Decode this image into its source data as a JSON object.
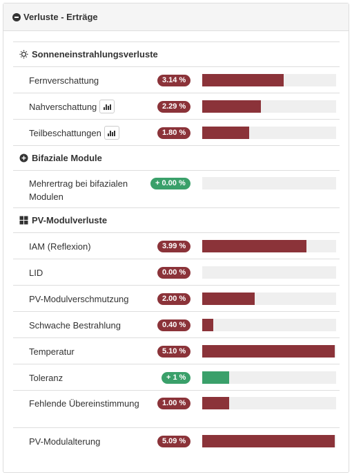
{
  "panel": {
    "title": "Verluste - Erträge"
  },
  "colors": {
    "loss": "#8b3339",
    "gain": "#3aa06a",
    "track": "#efefef"
  },
  "sections": [
    {
      "title": "Sonneneinstrahlungsverluste",
      "icon": "sun-icon",
      "rows": [
        {
          "label": "Fernverschattung",
          "value": "3.14 %",
          "type": "loss",
          "fill_pct": 61,
          "chart_button": false
        },
        {
          "label": "Nahverschattung",
          "value": "2.29 %",
          "type": "loss",
          "fill_pct": 44,
          "chart_button": true
        },
        {
          "label": "Teilbeschattungen",
          "value": "1.80 %",
          "type": "loss",
          "fill_pct": 35,
          "chart_button": true
        }
      ]
    },
    {
      "title": "Bifaziale Module",
      "icon": "plus-circle-icon",
      "rows": [
        {
          "label": "Mehrertrag bei bifazialen Modulen",
          "value": "+ 0.00 %",
          "type": "gain",
          "fill_pct": 0,
          "chart_button": false,
          "tall": true
        }
      ]
    },
    {
      "title": "PV-Modulverluste",
      "icon": "grid-icon",
      "rows": [
        {
          "label": "IAM (Reflexion)",
          "value": "3.99 %",
          "type": "loss",
          "fill_pct": 78,
          "chart_button": false
        },
        {
          "label": "LID",
          "value": "0.00 %",
          "type": "loss",
          "fill_pct": 0,
          "chart_button": false
        },
        {
          "label": "PV-Modulverschmutzung",
          "value": "2.00 %",
          "type": "loss",
          "fill_pct": 39,
          "chart_button": false
        },
        {
          "label": "Schwache Bestrahlung",
          "value": "0.40 %",
          "type": "loss",
          "fill_pct": 8,
          "chart_button": false
        },
        {
          "label": "Temperatur",
          "value": "5.10 %",
          "type": "loss",
          "fill_pct": 99,
          "chart_button": false
        },
        {
          "label": "Toleranz",
          "value": "+ 1 %",
          "type": "gain",
          "fill_pct": 20,
          "chart_button": false
        },
        {
          "label": "Fehlende Übereinstimmung",
          "value": "1.00 %",
          "type": "loss",
          "fill_pct": 20,
          "chart_button": false,
          "tall": true
        },
        {
          "label": "PV-Modulalterung",
          "value": "5.09 %",
          "type": "loss",
          "fill_pct": 99,
          "chart_button": false
        }
      ]
    }
  ]
}
